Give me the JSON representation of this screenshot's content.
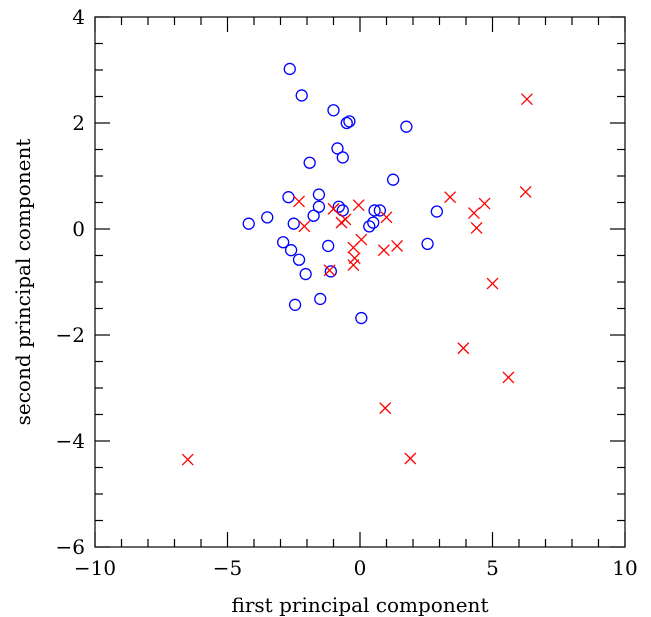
{
  "chart_data": {
    "type": "scatter",
    "title": "",
    "xlabel": "first principal component",
    "ylabel": "second principal component",
    "xlim": [
      -10,
      10
    ],
    "ylim": [
      -6,
      4
    ],
    "x_ticks": [
      -10,
      -5,
      0,
      5,
      10
    ],
    "y_ticks": [
      -6,
      -4,
      -2,
      0,
      2,
      4
    ],
    "x_tick_labels": [
      "−10",
      "−5",
      "0",
      "5",
      "10"
    ],
    "y_tick_labels": [
      "−6",
      "−4",
      "−2",
      "0",
      "2",
      "4"
    ],
    "grid": false,
    "legend": "none",
    "series": [
      {
        "marker": "circle",
        "color": "#0000ff",
        "points": [
          [
            -2.65,
            3.02
          ],
          [
            -2.2,
            2.52
          ],
          [
            -1.0,
            2.24
          ],
          [
            -0.5,
            2.0
          ],
          [
            -0.4,
            2.03
          ],
          [
            1.75,
            1.93
          ],
          [
            -0.85,
            1.52
          ],
          [
            -0.65,
            1.35
          ],
          [
            -1.9,
            1.25
          ],
          [
            1.25,
            0.93
          ],
          [
            -2.7,
            0.6
          ],
          [
            -1.55,
            0.65
          ],
          [
            -1.55,
            0.42
          ],
          [
            -0.8,
            0.42
          ],
          [
            -0.65,
            0.35
          ],
          [
            -1.75,
            0.25
          ],
          [
            0.55,
            0.35
          ],
          [
            0.75,
            0.35
          ],
          [
            2.9,
            0.33
          ],
          [
            -3.5,
            0.22
          ],
          [
            -4.2,
            0.1
          ],
          [
            -2.5,
            0.1
          ],
          [
            0.5,
            0.12
          ],
          [
            0.35,
            0.05
          ],
          [
            -2.9,
            -0.25
          ],
          [
            -2.6,
            -0.4
          ],
          [
            -1.2,
            -0.32
          ],
          [
            2.55,
            -0.28
          ],
          [
            -2.3,
            -0.58
          ],
          [
            -1.1,
            -0.8
          ],
          [
            -2.05,
            -0.85
          ],
          [
            -1.5,
            -1.32
          ],
          [
            -2.45,
            -1.43
          ],
          [
            0.05,
            -1.68
          ]
        ]
      },
      {
        "marker": "cross",
        "color": "#ff0000",
        "points": [
          [
            6.3,
            2.45
          ],
          [
            6.25,
            0.7
          ],
          [
            3.4,
            0.6
          ],
          [
            4.7,
            0.48
          ],
          [
            4.3,
            0.3
          ],
          [
            4.4,
            0.02
          ],
          [
            -2.3,
            0.52
          ],
          [
            -2.1,
            0.05
          ],
          [
            -1.0,
            0.38
          ],
          [
            -0.7,
            0.12
          ],
          [
            -0.55,
            0.18
          ],
          [
            -0.05,
            0.45
          ],
          [
            1.0,
            0.22
          ],
          [
            0.05,
            -0.2
          ],
          [
            -0.25,
            -0.35
          ],
          [
            1.4,
            -0.32
          ],
          [
            0.9,
            -0.4
          ],
          [
            -0.2,
            -0.55
          ],
          [
            -0.25,
            -0.68
          ],
          [
            -1.15,
            -0.78
          ],
          [
            5.0,
            -1.03
          ],
          [
            3.9,
            -2.25
          ],
          [
            5.6,
            -2.8
          ],
          [
            0.95,
            -3.38
          ],
          [
            -6.5,
            -4.35
          ],
          [
            1.9,
            -4.33
          ]
        ]
      }
    ]
  }
}
